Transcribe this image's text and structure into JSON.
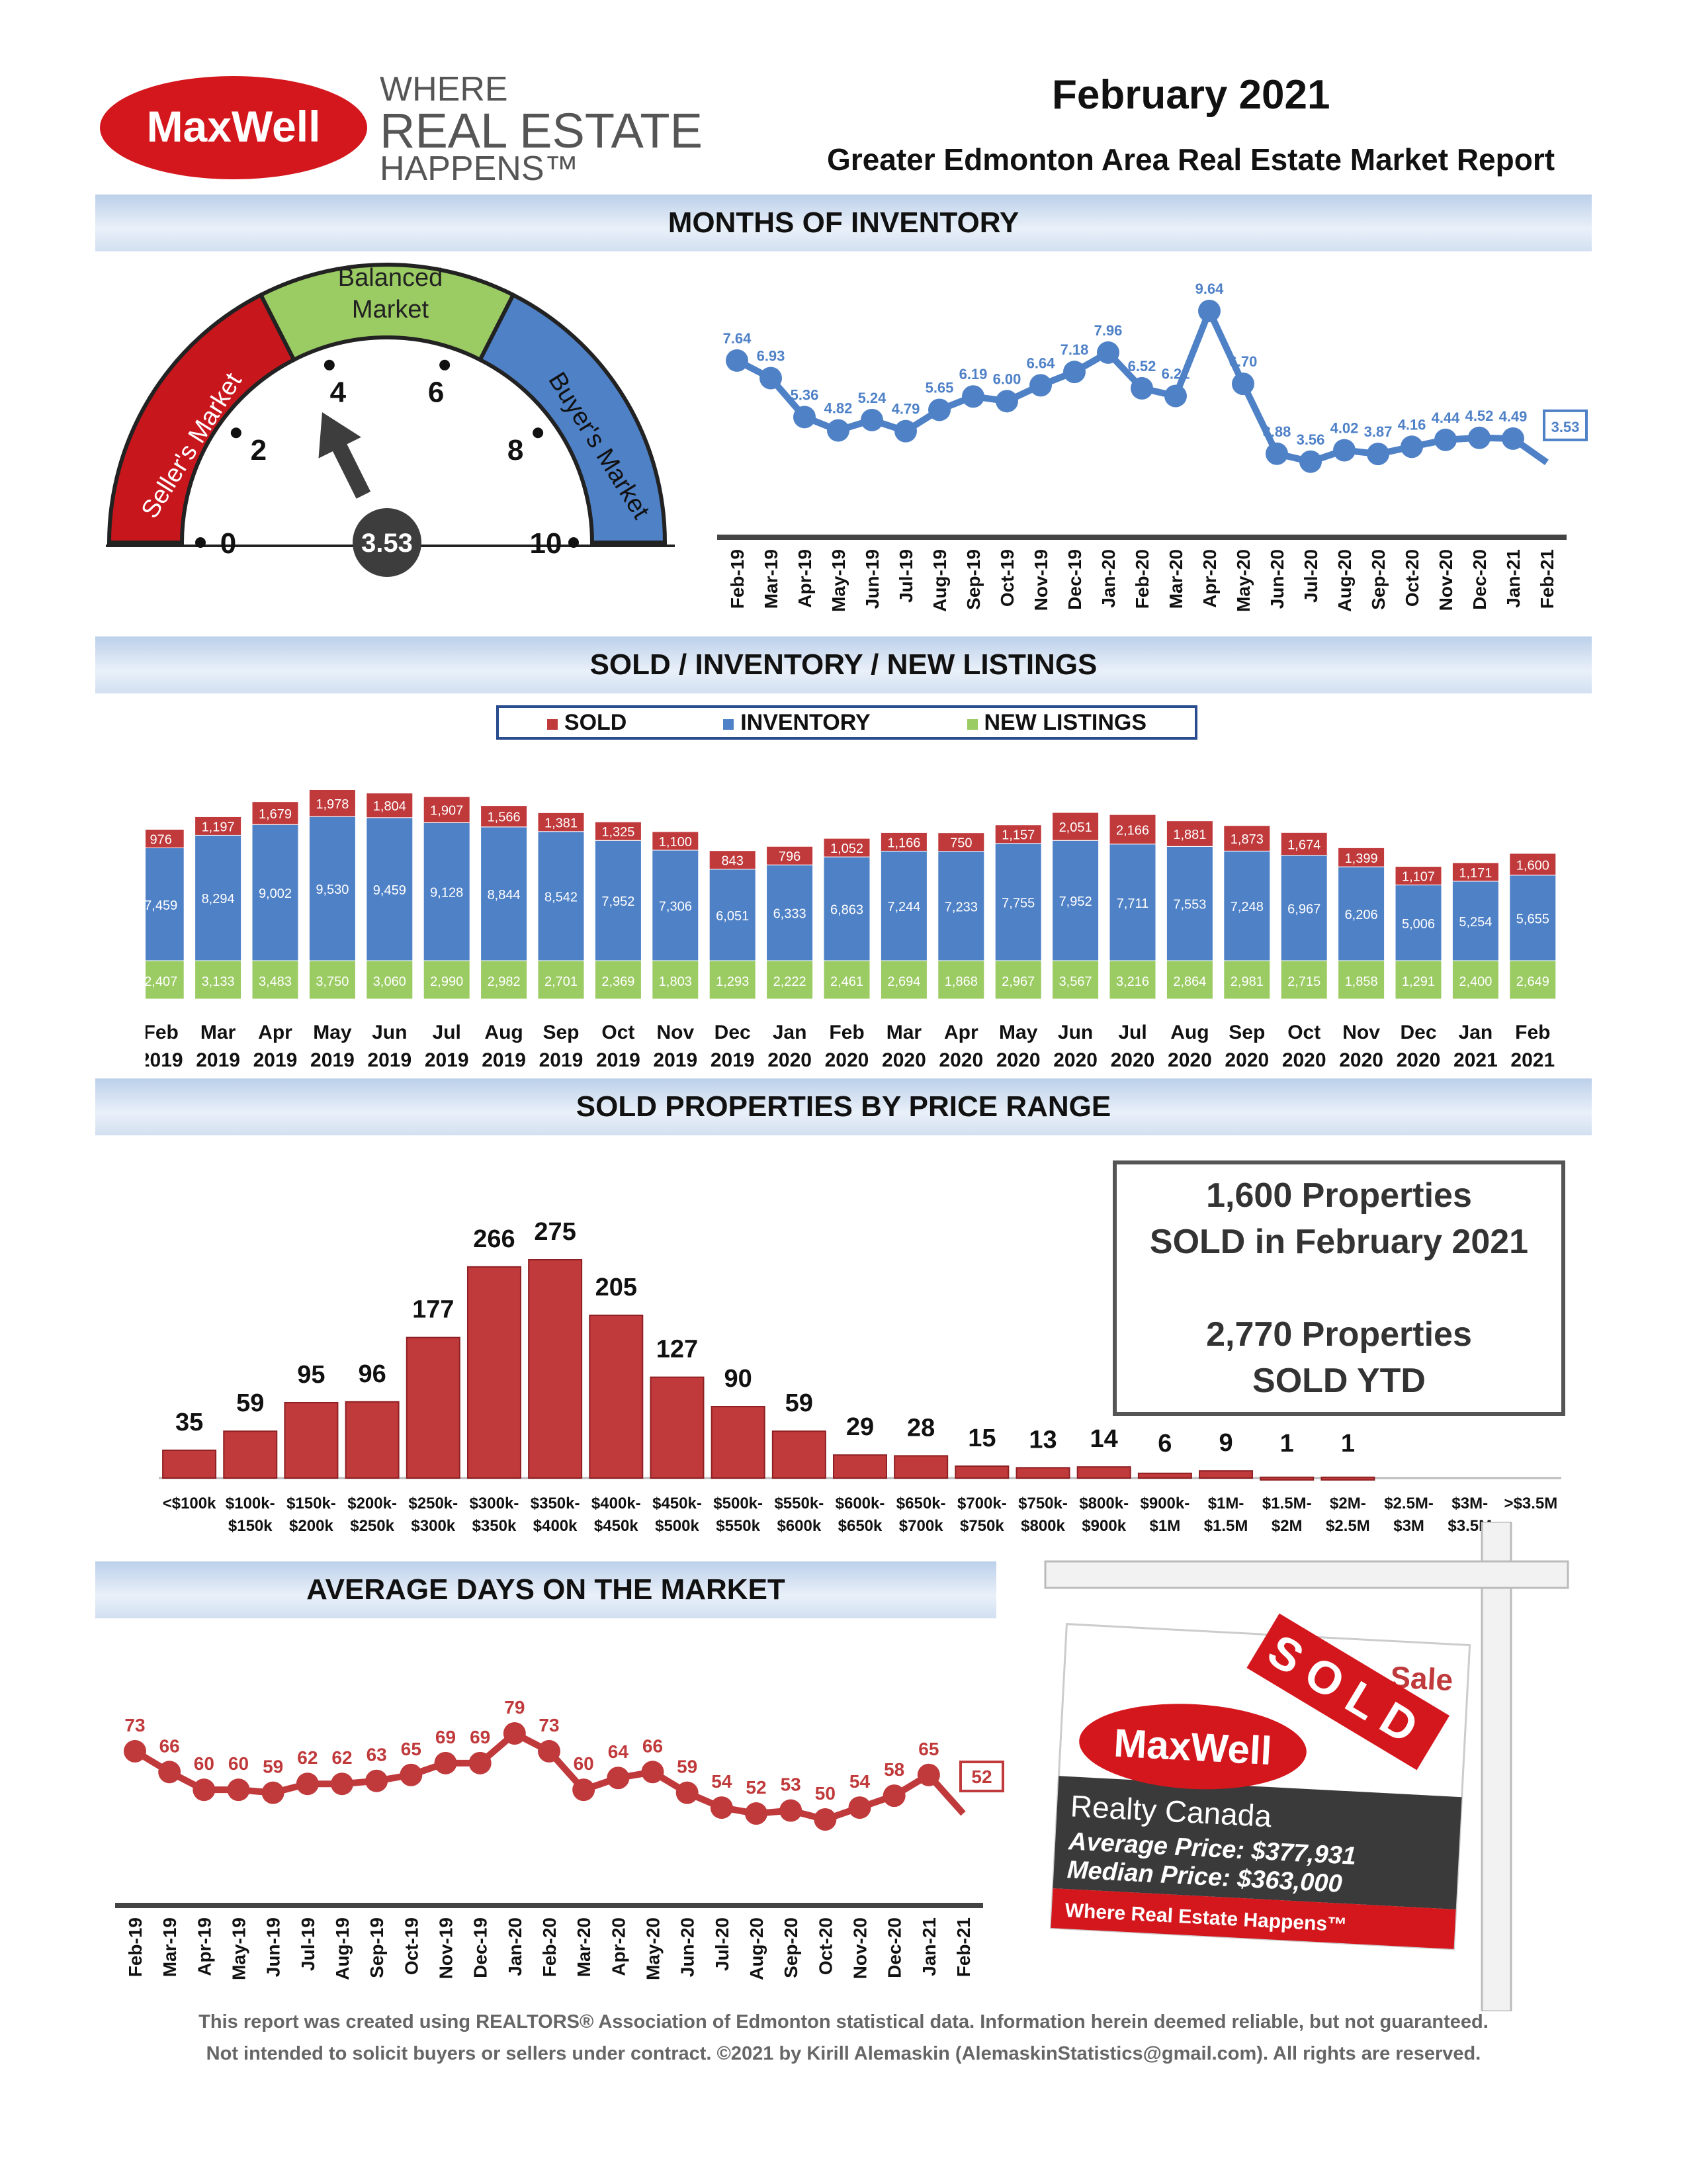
{
  "header": {
    "logo_word": "MaxWell",
    "tagline_1": "WHERE",
    "tagline_2": "REAL ESTATE",
    "tagline_3": "HAPPENS™",
    "month": "February 2021",
    "report_title": "Greater Edmonton Area Real Estate Market Report"
  },
  "sections": {
    "moi": "MONTHS OF INVENTORY",
    "sil": "SOLD / INVENTORY / NEW LISTINGS",
    "price": "SOLD PROPERTIES BY PRICE RANGE",
    "dom": "AVERAGE DAYS ON THE MARKET"
  },
  "gauge": {
    "seller": "Seller's Market",
    "balanced_1": "Balanced",
    "balanced_2": "Market",
    "buyer": "Buyer's Market",
    "ticks": [
      "0",
      "2",
      "4",
      "6",
      "8",
      "10"
    ],
    "value": 3.53,
    "value_label": "3.53",
    "colors": {
      "seller": "#c8161d",
      "balanced": "#9bcb63",
      "buyer": "#4f81c7"
    }
  },
  "chart_data": [
    {
      "type": "line",
      "name": "months_of_inventory",
      "categories": [
        "Feb-19",
        "Mar-19",
        "Apr-19",
        "May-19",
        "Jun-19",
        "Jul-19",
        "Aug-19",
        "Sep-19",
        "Oct-19",
        "Nov-19",
        "Dec-19",
        "Jan-20",
        "Feb-20",
        "Mar-20",
        "Apr-20",
        "May-20",
        "Jun-20",
        "Jul-20",
        "Aug-20",
        "Sep-20",
        "Oct-20",
        "Nov-20",
        "Dec-20",
        "Jan-21",
        "Feb-21"
      ],
      "values": [
        7.64,
        6.93,
        5.36,
        4.82,
        5.24,
        4.79,
        5.65,
        6.19,
        6.0,
        6.64,
        7.18,
        7.96,
        6.52,
        6.21,
        9.64,
        6.7,
        3.88,
        3.56,
        4.02,
        3.87,
        4.16,
        4.44,
        4.52,
        4.49,
        3.53
      ],
      "labels": [
        "7.64",
        "6.93",
        "5.36",
        "4.82",
        "5.24",
        "4.79",
        "5.65",
        "6.19",
        "6.00",
        "6.64",
        "7.18",
        "7.96",
        "6.52",
        "6.21",
        "9.64",
        "6.70",
        "3.88",
        "3.56",
        "4.02",
        "3.87",
        "4.16",
        "4.44",
        "4.52",
        "4.49",
        "3.53"
      ],
      "color": "#4f81c7"
    },
    {
      "type": "bar",
      "name": "sold_inventory_new_listings",
      "stacked": true,
      "legend": [
        "SOLD",
        "INVENTORY",
        "NEW LISTINGS"
      ],
      "categories_month": [
        "Feb",
        "Mar",
        "Apr",
        "May",
        "Jun",
        "Jul",
        "Aug",
        "Sep",
        "Oct",
        "Nov",
        "Dec",
        "Jan",
        "Feb",
        "Mar",
        "Apr",
        "May",
        "Jun",
        "Jul",
        "Aug",
        "Sep",
        "Oct",
        "Nov",
        "Dec",
        "Jan",
        "Feb"
      ],
      "categories_year": [
        "2019",
        "2019",
        "2019",
        "2019",
        "2019",
        "2019",
        "2019",
        "2019",
        "2019",
        "2019",
        "2019",
        "2020",
        "2020",
        "2020",
        "2020",
        "2020",
        "2020",
        "2020",
        "2020",
        "2020",
        "2020",
        "2020",
        "2020",
        "2021",
        "2021"
      ],
      "series": [
        {
          "name": "NEW LISTINGS",
          "color": "#9bcb63",
          "values": [
            2407,
            3133,
            3483,
            3750,
            3060,
            2990,
            2982,
            2701,
            2369,
            1803,
            1293,
            2222,
            2461,
            2694,
            1868,
            2967,
            3567,
            3216,
            2864,
            2981,
            2715,
            1858,
            1291,
            2400,
            2649
          ],
          "labels": [
            "2,407",
            "3,133",
            "3,483",
            "3,750",
            "3,060",
            "2,990",
            "2,982",
            "2,701",
            "2,369",
            "1,803",
            "1,293",
            "2,222",
            "2,461",
            "2,694",
            "1,868",
            "2,967",
            "3,567",
            "3,216",
            "2,864",
            "2,981",
            "2,715",
            "1,858",
            "1,291",
            "2,400",
            "2,649"
          ]
        },
        {
          "name": "INVENTORY",
          "color": "#4f81c7",
          "values": [
            7459,
            8294,
            9002,
            9530,
            9459,
            9128,
            8844,
            8542,
            7952,
            7306,
            6051,
            6333,
            6863,
            7244,
            7233,
            7755,
            7952,
            7711,
            7553,
            7248,
            6967,
            6206,
            5006,
            5254,
            5655
          ],
          "labels": [
            "7,459",
            "8,294",
            "9,002",
            "9,530",
            "9,459",
            "9,128",
            "8,844",
            "8,542",
            "7,952",
            "7,306",
            "6,051",
            "6,333",
            "6,863",
            "7,244",
            "7,233",
            "7,755",
            "7,952",
            "7,711",
            "7,553",
            "7,248",
            "6,967",
            "6,206",
            "5,006",
            "5,254",
            "5,655"
          ]
        },
        {
          "name": "SOLD",
          "color": "#c0393b",
          "values": [
            976,
            1197,
            1679,
            1978,
            1804,
            1907,
            1566,
            1381,
            1325,
            1100,
            843,
            796,
            1052,
            1166,
            750,
            1157,
            2051,
            2166,
            1881,
            1873,
            1674,
            1399,
            1107,
            1171,
            1600
          ],
          "labels": [
            "976",
            "1,197",
            "1,679",
            "1,978",
            "1,804",
            "1,907",
            "1,566",
            "1,381",
            "1,325",
            "1,100",
            "843",
            "796",
            "1,052",
            "1,166",
            "750",
            "1,157",
            "2,051",
            "2,166",
            "1,881",
            "1,873",
            "1,674",
            "1,399",
            "1,107",
            "1,171",
            "1,600"
          ]
        }
      ]
    },
    {
      "type": "bar",
      "name": "sold_by_price_range",
      "categories_line1": [
        "<$100k",
        "$100k-",
        "$150k-",
        "$200k-",
        "$250k-",
        "$300k-",
        "$350k-",
        "$400k-",
        "$450k-",
        "$500k-",
        "$550k-",
        "$600k-",
        "$650k-",
        "$700k-",
        "$750k-",
        "$800k-",
        "$900k-",
        "$1M-",
        "$1.5M-",
        "$2M-",
        "$2.5M-",
        "$3M-",
        ">$3.5M"
      ],
      "categories_line2": [
        "",
        "$150k",
        "$200k",
        "$250k",
        "$300k",
        "$350k",
        "$400k",
        "$450k",
        "$500k",
        "$550k",
        "$600k",
        "$650k",
        "$700k",
        "$750k",
        "$800k",
        "$900k",
        "$1M",
        "$1.5M",
        "$2M",
        "$2.5M",
        "$3M",
        "$3.5M",
        ""
      ],
      "values": [
        35,
        59,
        95,
        96,
        177,
        266,
        275,
        205,
        127,
        90,
        59,
        29,
        28,
        15,
        13,
        14,
        6,
        9,
        1,
        1,
        0,
        0,
        0
      ],
      "labels": [
        "35",
        "59",
        "95",
        "96",
        "177",
        "266",
        "275",
        "205",
        "127",
        "90",
        "59",
        "29",
        "28",
        "15",
        "13",
        "14",
        "6",
        "9",
        "1",
        "1",
        "",
        "",
        ""
      ],
      "color": "#c0393b"
    },
    {
      "type": "line",
      "name": "average_days_on_market",
      "categories": [
        "Feb-19",
        "Mar-19",
        "Apr-19",
        "May-19",
        "Jun-19",
        "Jul-19",
        "Aug-19",
        "Sep-19",
        "Oct-19",
        "Nov-19",
        "Dec-19",
        "Jan-20",
        "Feb-20",
        "Mar-20",
        "Apr-20",
        "May-20",
        "Jun-20",
        "Jul-20",
        "Aug-20",
        "Sep-20",
        "Oct-20",
        "Nov-20",
        "Dec-20",
        "Jan-21",
        "Feb-21"
      ],
      "values": [
        73,
        66,
        60,
        60,
        59,
        62,
        62,
        63,
        65,
        69,
        69,
        79,
        73,
        60,
        64,
        66,
        59,
        54,
        52,
        53,
        50,
        54,
        58,
        65,
        52
      ],
      "labels": [
        "73",
        "66",
        "60",
        "60",
        "59",
        "62",
        "62",
        "63",
        "65",
        "69",
        "69",
        "79",
        "73",
        "60",
        "64",
        "66",
        "59",
        "54",
        "52",
        "53",
        "50",
        "54",
        "58",
        "65",
        "52"
      ],
      "color": "#c0393b"
    }
  ],
  "stats": {
    "line1": "1,600 Properties",
    "line2": "SOLD in February 2021",
    "line3": "2,770 Properties",
    "line4": "SOLD YTD"
  },
  "sign": {
    "sale": "Sale",
    "sold": "SOLD",
    "brand": "MaxWell",
    "company": "Realty Canada",
    "avg": "Average Price: $377,931",
    "median": "Median Price: $363,000",
    "slogan": "Where Real Estate Happens™"
  },
  "footer": {
    "line1": "This report was created using REALTORS® Association of Edmonton statistical data. Information herein deemed reliable, but not guaranteed.",
    "line2": "Not intended to solicit buyers or sellers under contract. ©2021 by Kirill Alemaskin (AlemaskinStatistics@gmail.com). All rights are reserved."
  }
}
